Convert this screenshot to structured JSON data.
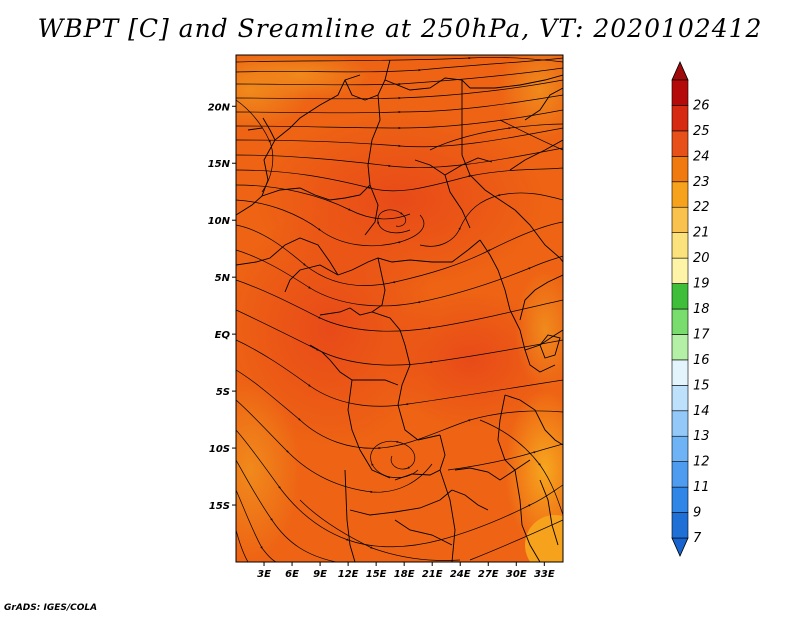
{
  "title": "WBPT [C] and Sreamline at 250hPa, VT: 2020102412",
  "credit": "GrADS: IGES/COLA",
  "map": {
    "variable": "WBPT",
    "units": "C",
    "level": "250hPa",
    "valid_time": "2020102412",
    "lon_range": [
      0,
      35
    ],
    "lat_range": [
      -20,
      24.5
    ],
    "lat_ticks": [
      {
        "value": 20,
        "label": "20N"
      },
      {
        "value": 15,
        "label": "15N"
      },
      {
        "value": 10,
        "label": "10N"
      },
      {
        "value": 5,
        "label": "5N"
      },
      {
        "value": 0,
        "label": "EQ"
      },
      {
        "value": -5,
        "label": "5S"
      },
      {
        "value": -10,
        "label": "10S"
      },
      {
        "value": -15,
        "label": "15S"
      }
    ],
    "lon_ticks": [
      {
        "value": 3,
        "label": "3E"
      },
      {
        "value": 6,
        "label": "6E"
      },
      {
        "value": 9,
        "label": "9E"
      },
      {
        "value": 12,
        "label": "12E"
      },
      {
        "value": 15,
        "label": "15E"
      },
      {
        "value": 18,
        "label": "18E"
      },
      {
        "value": 21,
        "label": "21E"
      },
      {
        "value": 24,
        "label": "24E"
      },
      {
        "value": 27,
        "label": "27E"
      },
      {
        "value": 30,
        "label": "30E"
      },
      {
        "value": 33,
        "label": "33E"
      }
    ]
  },
  "colorbar": {
    "levels": [
      {
        "label": "7",
        "color": "#1e6fd6"
      },
      {
        "label": "9",
        "color": "#2f86e6"
      },
      {
        "label": "11",
        "color": "#4d9cf0"
      },
      {
        "label": "12",
        "color": "#6db3f5"
      },
      {
        "label": "13",
        "color": "#93c9f8"
      },
      {
        "label": "14",
        "color": "#bde0fb"
      },
      {
        "label": "15",
        "color": "#e3f4fd"
      },
      {
        "label": "16",
        "color": "#b4f0a6"
      },
      {
        "label": "17",
        "color": "#78dd6c"
      },
      {
        "label": "18",
        "color": "#3fbe3a"
      },
      {
        "label": "19",
        "color": "#fdf4a8"
      },
      {
        "label": "20",
        "color": "#fbe27c"
      },
      {
        "label": "21",
        "color": "#f9c24e"
      },
      {
        "label": "22",
        "color": "#f6a21c"
      },
      {
        "label": "23",
        "color": "#f07a10"
      },
      {
        "label": "24",
        "color": "#e8501a"
      },
      {
        "label": "25",
        "color": "#d62a12"
      },
      {
        "label": "26",
        "color": "#b40a0a"
      }
    ],
    "under_color": "#1764d0",
    "over_color": "#a00a0a"
  }
}
